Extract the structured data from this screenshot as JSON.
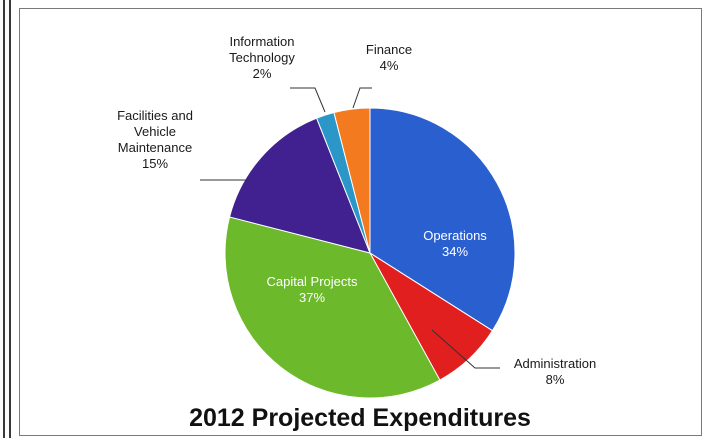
{
  "chart_data": {
    "type": "pie",
    "title": "2012 Projected Expenditures",
    "slices": [
      {
        "label_lines": [
          "Operations",
          "34%"
        ],
        "value": 34,
        "color": "#2a5fd0",
        "label_pos": "inside"
      },
      {
        "label_lines": [
          "Administration",
          "8%"
        ],
        "value": 8,
        "color": "#e11f1f",
        "label_pos": "outside"
      },
      {
        "label_lines": [
          "Capital Projects",
          "37%"
        ],
        "value": 37,
        "color": "#6cb92b",
        "label_pos": "inside"
      },
      {
        "label_lines": [
          "Facilities and",
          "Vehicle",
          "Maintenance",
          "15%"
        ],
        "value": 15,
        "color": "#40218f",
        "label_pos": "outside"
      },
      {
        "label_lines": [
          "Information",
          "Technology",
          "2%"
        ],
        "value": 2,
        "color": "#2b97c9",
        "label_pos": "outside"
      },
      {
        "label_lines": [
          "Finance",
          "4%"
        ],
        "value": 4,
        "color": "#f47a1f",
        "label_pos": "outside"
      }
    ],
    "legend": "none"
  }
}
